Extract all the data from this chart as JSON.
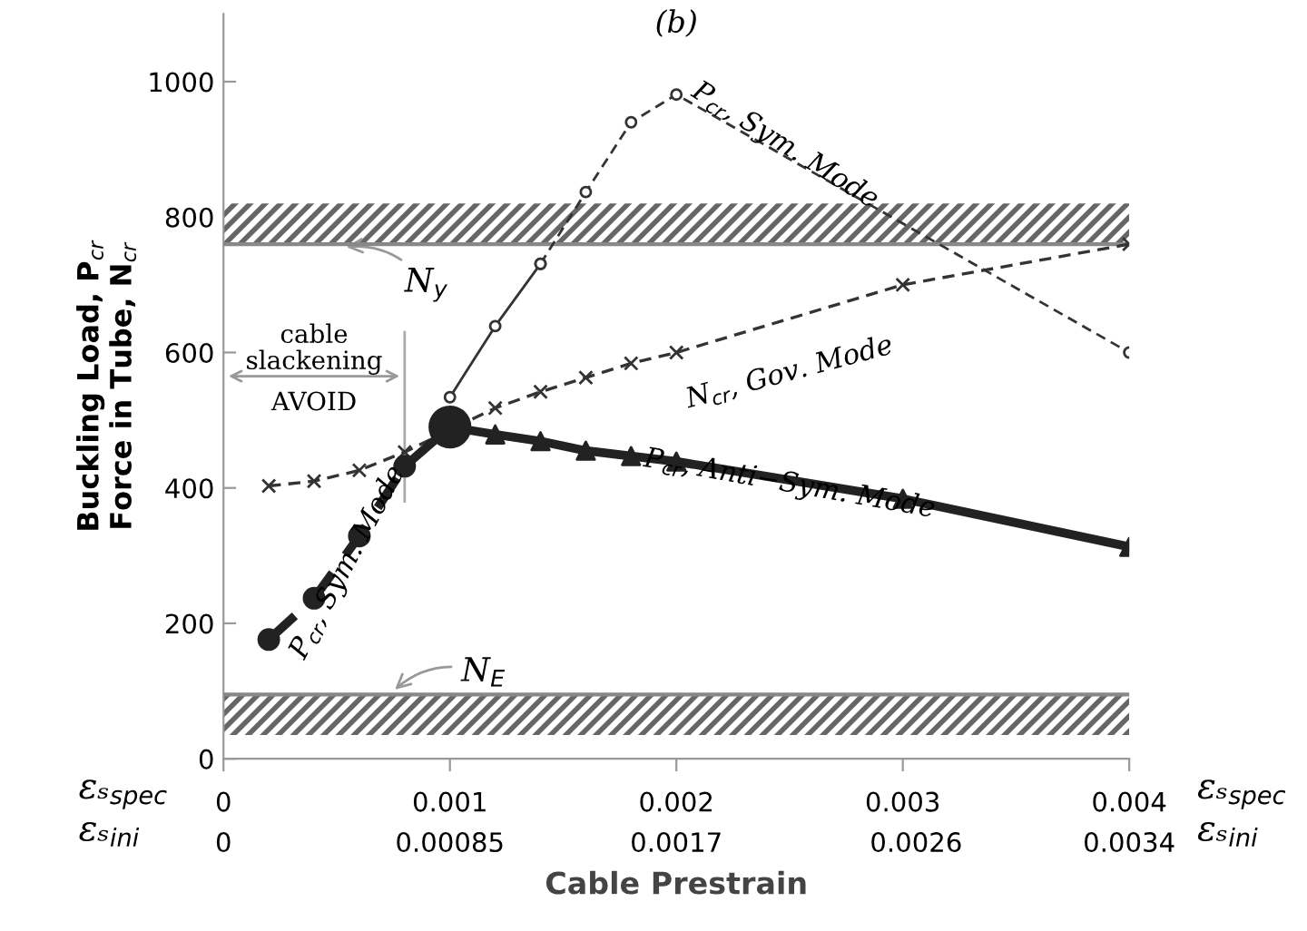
{
  "chart_data": {
    "type": "line",
    "title": "(b)",
    "xlabel": "Cable Prestrain",
    "ylabel": "Buckling Load, P$_{cr}$\nForce in Tube, N$_{cr}$",
    "xlim": [
      0,
      0.004
    ],
    "xticks": [
      0,
      0.001,
      0.002,
      0.003,
      0.004
    ],
    "x2lim": [
      0,
      0.0034
    ],
    "x2ticks": [
      0,
      0.00085,
      0.0017,
      0.0026,
      0.0034
    ],
    "ylim": [
      0,
      1100
    ],
    "yticks": [
      0,
      200,
      400,
      600,
      800,
      1000
    ],
    "grid": false,
    "series": [
      {
        "x": [
          0.001,
          0.0012,
          0.0014
        ],
        "values": [
          534,
          639,
          731
        ],
        "color": "#333333",
        "marker": "circle",
        "line_style": "solid"
      },
      {
        "x": [
          0.0014,
          0.0016,
          0.0018,
          0.002,
          0.004
        ],
        "values": [
          731,
          837,
          940,
          981,
          600
        ],
        "color": "#333333",
        "marker": "circle",
        "line_style": "dashed"
      },
      {
        "x": [
          0.0002,
          0.0004,
          0.0006,
          0.0008,
          0.0012,
          0.0014,
          0.0016,
          0.0018,
          0.002,
          0.003,
          0.004
        ],
        "values": [
          403,
          410,
          426,
          453,
          518,
          542,
          563,
          584,
          600,
          700,
          760
        ],
        "color": "#333333",
        "marker": "cross",
        "line_style": "dashed"
      },
      {
        "x": [
          0.0002,
          0.0004,
          0.0006,
          0.0008,
          0.001
        ],
        "values": [
          176,
          237,
          329,
          432,
          490
        ],
        "color": "#222222",
        "marker": "circle",
        "line_style": "dashed"
      },
      {
        "x": [
          0.001,
          0.0012,
          0.0014,
          0.0016,
          0.0018,
          0.002,
          0.003,
          0.004
        ],
        "values": [
          490,
          479,
          469,
          455,
          447,
          439,
          384,
          313
        ],
        "color": "#222222",
        "marker": "triangle",
        "line_style": "solid"
      }
    ],
    "bands": [
      {
        "axis": "y",
        "from": 760,
        "to": 820,
        "label": "N$_{y}$",
        "color": "#666666"
      },
      {
        "axis": "y",
        "from": 35,
        "to": 95,
        "label": "N$_{E}$",
        "color": "#666666"
      }
    ],
    "ref_lines": [
      {
        "axis": "x",
        "value": 0.0008,
        "color": "#aaaaaa"
      },
      {
        "axis": "y",
        "value": 760,
        "color": "#888888"
      },
      {
        "axis": "y",
        "value": 95,
        "color": "#888888"
      }
    ],
    "annotations": [
      "P$_{cr}$, Sym. Mode",
      "N$_{cr}$, Gov. Mode",
      "P$_{cr}$, Anti−Sym. Mode",
      "P$_{cr}$, Sym. Mode",
      "cable\nslackening",
      "AVOID",
      "εₛ$_{spec}$",
      "εₛ$_{ini}$",
      "εₛ$_{spec}$",
      "εₛ$_{ini}$"
    ]
  }
}
